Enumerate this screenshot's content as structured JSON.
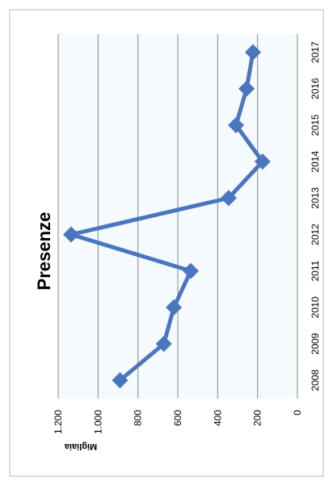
{
  "chart_data": {
    "type": "line",
    "title": "Presenze",
    "y_label": "Migliaia",
    "categories": [
      "2008",
      "2009",
      "2010",
      "2011",
      "2012",
      "2013",
      "2014",
      "2015",
      "2016",
      "2017"
    ],
    "series": [
      {
        "name": "Presenze",
        "color": "#4a76c0",
        "values": [
          890,
          670,
          620,
          535,
          1135,
          345,
          175,
          308,
          255,
          223
        ]
      }
    ],
    "ylim": [
      0,
      1200
    ],
    "yticks": [
      0,
      200,
      400,
      600,
      800,
      {
        "value": 1000,
        "label": "1.000"
      },
      {
        "value": 1200,
        "label": "1.200"
      }
    ],
    "grid": true
  }
}
